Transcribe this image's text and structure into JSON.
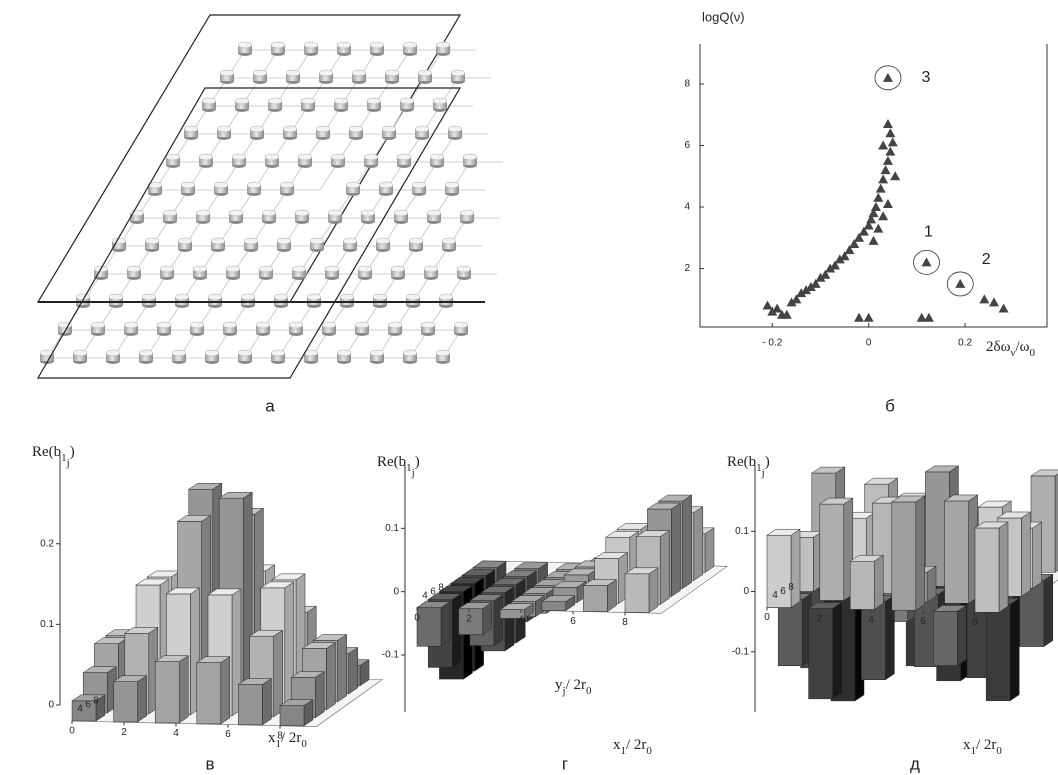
{
  "panel_labels": [
    "а",
    "б",
    "в",
    "г",
    "д"
  ],
  "chart_data": [
    {
      "type": "scatter",
      "y_label": "logQ(ν)",
      "x_label_parts": [
        "2δω",
        "ν",
        "/ω",
        "0"
      ],
      "color": "#444",
      "x": [
        -0.21,
        -0.2,
        -0.19,
        -0.18,
        -0.17,
        -0.16,
        -0.15,
        -0.14,
        -0.13,
        -0.12,
        -0.11,
        -0.1,
        -0.09,
        -0.08,
        -0.07,
        -0.06,
        -0.05,
        -0.04,
        -0.03,
        -0.02,
        -0.01,
        0.0,
        0.005,
        0.01,
        0.01,
        0.015,
        0.02,
        0.02,
        0.025,
        0.03,
        0.03,
        0.035,
        0.04,
        0.04,
        0.045,
        0.05,
        0.045,
        0.04,
        0.03,
        0.055,
        -0.02,
        0.0,
        0.11,
        0.125,
        0.12,
        0.19,
        0.24,
        0.26,
        0.28,
        0.04
      ],
      "y": [
        0.8,
        0.6,
        0.7,
        0.5,
        0.5,
        0.9,
        1.0,
        1.2,
        1.3,
        1.4,
        1.5,
        1.7,
        1.8,
        2.0,
        2.1,
        2.3,
        2.4,
        2.6,
        2.8,
        3.0,
        3.2,
        3.4,
        3.6,
        2.9,
        3.8,
        4.0,
        3.3,
        4.3,
        4.6,
        3.7,
        4.9,
        5.2,
        4.1,
        5.5,
        5.8,
        6.1,
        6.4,
        6.7,
        6.0,
        5.0,
        0.4,
        0.4,
        0.4,
        0.4,
        2.2,
        1.5,
        1.0,
        0.9,
        0.7,
        8.2
      ],
      "xlim": [
        -0.35,
        0.37
      ],
      "ylim": [
        0.1,
        9.3
      ],
      "xticks": [
        {
          "value": -0.2,
          "label": "- 0.2"
        },
        0,
        0.2
      ],
      "yticks": [
        2,
        4,
        6,
        8
      ],
      "annotations": [
        {
          "text": "1",
          "x": 0.12,
          "y": 2.2
        },
        {
          "text": "2",
          "x": 0.19,
          "y": 1.5
        },
        {
          "text": "3",
          "x": 0.04,
          "y": 8.2
        }
      ]
    },
    {
      "type": "bar3d",
      "y_label_parts": [
        "Re(b",
        "1",
        "j",
        ")"
      ],
      "x_label_parts": [
        "x",
        "1",
        "/ 2r",
        "0"
      ],
      "x": [
        0,
        1.6,
        3.2,
        4.8,
        6.4,
        8
      ],
      "depth": [
        0,
        1.6,
        3.2,
        4.8,
        6.4,
        8
      ],
      "values": [
        [
          0.025,
          0.05,
          0.076,
          0.076,
          0.05,
          0.025
        ],
        [
          0.05,
          0.1,
          0.15,
          0.15,
          0.1,
          0.05
        ],
        [
          0.076,
          0.15,
          0.23,
          0.26,
          0.15,
          0.076
        ],
        [
          0.076,
          0.15,
          0.26,
          0.23,
          0.15,
          0.076
        ],
        [
          0.05,
          0.1,
          0.15,
          0.15,
          0.1,
          0.05
        ],
        [
          0.025,
          0.05,
          0.076,
          0.076,
          0.05,
          0.025
        ]
      ],
      "ylim": [
        0,
        0.31
      ],
      "yticks": [
        0,
        0.1,
        0.2
      ],
      "xticks": [
        0,
        2,
        4,
        6,
        8
      ],
      "depth_ticks": [
        4,
        6,
        8
      ]
    },
    {
      "type": "bar3d",
      "y_label_parts": [
        "Re(b",
        "1",
        "j",
        ")"
      ],
      "x_label_parts": [
        "x",
        "1",
        "/ 2r",
        "0"
      ],
      "inner_label_parts": [
        "y",
        "j",
        "/ 2r",
        "0"
      ],
      "x": [
        0,
        1.6,
        3.2,
        4.8,
        6.4,
        8
      ],
      "depth": [
        0,
        1.6,
        3.2,
        4.8,
        6.4,
        8
      ],
      "values": [
        [
          -0.061,
          -0.041,
          -0.014,
          0.014,
          0.041,
          0.061
        ],
        [
          -0.107,
          -0.071,
          -0.024,
          0.024,
          0.071,
          0.107
        ],
        [
          -0.138,
          -0.092,
          -0.031,
          0.031,
          0.092,
          0.138
        ],
        [
          -0.138,
          -0.092,
          -0.031,
          0.031,
          0.092,
          0.138
        ],
        [
          -0.107,
          -0.071,
          -0.024,
          0.024,
          0.071,
          0.107
        ],
        [
          -0.061,
          -0.041,
          -0.014,
          0.014,
          0.041,
          0.061
        ]
      ],
      "ylim": [
        -0.19,
        0.2
      ],
      "yticks": [
        -0.1,
        0,
        0.1
      ],
      "xticks": [
        0,
        2,
        4,
        6,
        8
      ],
      "depth_ticks": [
        4,
        6,
        8
      ]
    },
    {
      "type": "bar3d",
      "y_label_parts": [
        "Re(b",
        "1",
        "j",
        ")"
      ],
      "x_label_parts": [
        "x",
        "1",
        "/ 2r",
        "0"
      ],
      "x": [
        0,
        1.6,
        3.2,
        4.8,
        6.4,
        8
      ],
      "depth": [
        0,
        1.6,
        3.2,
        4.8,
        6.4,
        8
      ],
      "values": [
        [
          0.12,
          -0.15,
          0.08,
          0.18,
          -0.09,
          0.14
        ],
        [
          -0.11,
          0.16,
          -0.13,
          0.05,
          0.17,
          -0.16
        ],
        [
          0.09,
          -0.18,
          0.15,
          -0.12,
          0.07,
          0.13
        ],
        [
          -0.14,
          0.11,
          -0.06,
          0.19,
          -0.15,
          0.1
        ],
        [
          0.17,
          -0.08,
          0.13,
          -0.17,
          0.12,
          -0.11
        ],
        [
          -0.1,
          0.14,
          -0.16,
          0.09,
          -0.13,
          0.16
        ]
      ],
      "ylim": [
        -0.2,
        0.21
      ],
      "yticks": [
        -0.1,
        0,
        0.1
      ],
      "xticks": [
        0,
        2,
        4,
        6,
        8
      ],
      "depth_ticks": [
        4,
        6,
        8
      ]
    }
  ]
}
